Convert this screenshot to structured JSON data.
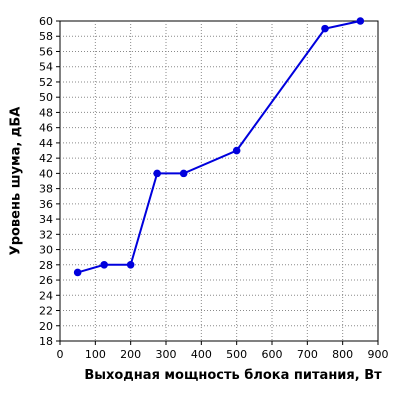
{
  "chart_data": {
    "type": "line",
    "title": "",
    "xlabel": "Выходная мощность блока питания, Вт",
    "ylabel": "Уровень шума, дБА",
    "xlim": [
      0,
      900
    ],
    "ylim": [
      18,
      60
    ],
    "x_ticks": [
      0,
      100,
      200,
      300,
      400,
      500,
      600,
      700,
      800,
      900
    ],
    "y_ticks": [
      18,
      20,
      22,
      24,
      26,
      28,
      30,
      32,
      34,
      36,
      38,
      40,
      42,
      44,
      46,
      48,
      50,
      52,
      54,
      56,
      58,
      60
    ],
    "grid": true,
    "legend": "none",
    "series": [
      {
        "color": "#0000dd",
        "x": [
          50,
          125,
          200,
          275,
          350,
          500,
          750,
          850
        ],
        "y": [
          27,
          28,
          28,
          40,
          40,
          43,
          59,
          60
        ]
      }
    ]
  }
}
